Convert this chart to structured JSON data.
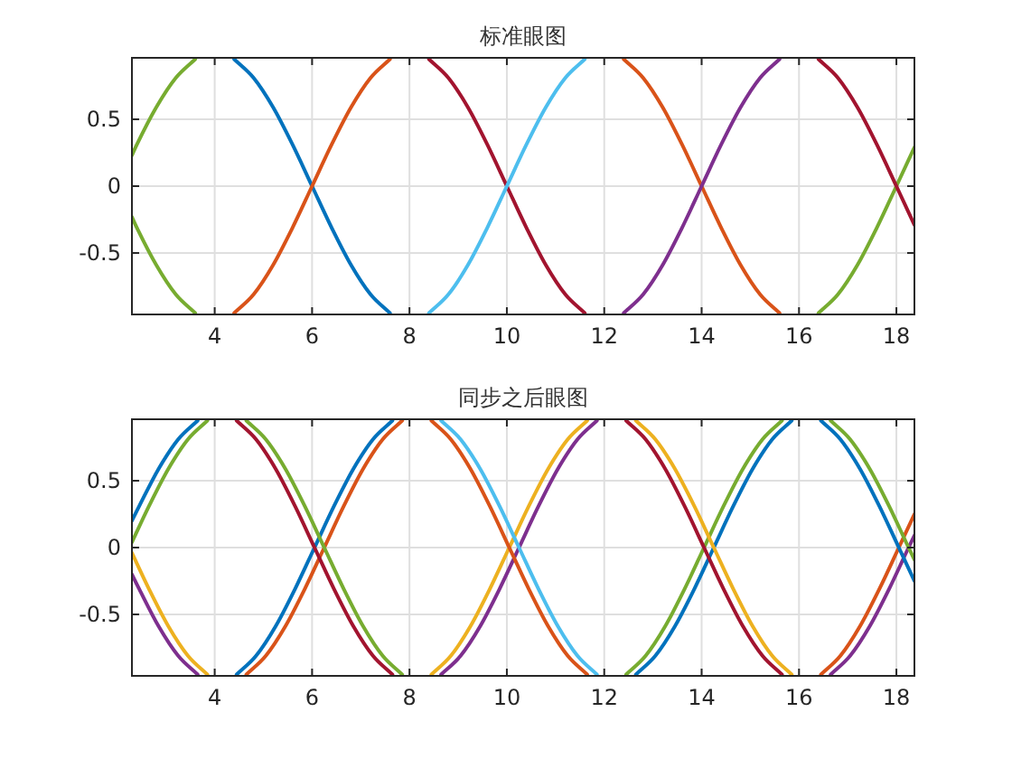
{
  "chart_data": [
    {
      "type": "line",
      "title": "标准眼图",
      "xlim": [
        2.3,
        18.37
      ],
      "ylim": [
        -0.96,
        0.96
      ],
      "xticks": [
        4,
        6,
        8,
        10,
        12,
        14,
        16,
        18
      ],
      "yticks": [
        -0.5,
        0,
        0.5
      ],
      "grid": true,
      "series": [
        {
          "color": "#77ac30",
          "x": [
            2.3,
            2.4,
            2.8,
            3.2,
            3.6
          ],
          "values": [
            0.23,
            0.31,
            0.59,
            0.81,
            0.95
          ]
        },
        {
          "color": "#77ac30",
          "x": [
            2.3,
            2.4,
            2.8,
            3.2,
            3.6
          ],
          "values": [
            -0.23,
            -0.31,
            -0.59,
            -0.81,
            -0.95
          ]
        },
        {
          "color": "#0072bd",
          "x": [
            4.4,
            4.8,
            5.2,
            5.6,
            6,
            6.4,
            6.8,
            7.2,
            7.6
          ],
          "values": [
            0.95,
            0.81,
            0.59,
            0.31,
            0,
            -0.31,
            -0.59,
            -0.81,
            -0.95
          ]
        },
        {
          "color": "#d95319",
          "x": [
            4.4,
            4.8,
            5.2,
            5.6,
            6,
            6.4,
            6.8,
            7.2,
            7.6
          ],
          "values": [
            -0.95,
            -0.81,
            -0.59,
            -0.31,
            0,
            0.31,
            0.59,
            0.81,
            0.95
          ]
        },
        {
          "color": "#a2142f",
          "x": [
            8.4,
            8.8,
            9.2,
            9.6,
            10,
            10.4,
            10.8,
            11.2,
            11.6
          ],
          "values": [
            0.95,
            0.81,
            0.59,
            0.31,
            0,
            -0.31,
            -0.59,
            -0.81,
            -0.95
          ]
        },
        {
          "color": "#4dbeee",
          "x": [
            8.4,
            8.8,
            9.2,
            9.6,
            10,
            10.4,
            10.8,
            11.2,
            11.6
          ],
          "values": [
            -0.95,
            -0.81,
            -0.59,
            -0.31,
            0,
            0.31,
            0.59,
            0.81,
            0.95
          ]
        },
        {
          "color": "#d95319",
          "x": [
            12.4,
            12.8,
            13.2,
            13.6,
            14,
            14.4,
            14.8,
            15.2,
            15.6
          ],
          "values": [
            0.95,
            0.81,
            0.59,
            0.31,
            0,
            -0.31,
            -0.59,
            -0.81,
            -0.95
          ]
        },
        {
          "color": "#7e2f8e",
          "x": [
            12.4,
            12.8,
            13.2,
            13.6,
            14,
            14.4,
            14.8,
            15.2,
            15.6
          ],
          "values": [
            -0.95,
            -0.81,
            -0.59,
            -0.31,
            0,
            0.31,
            0.59,
            0.81,
            0.95
          ]
        },
        {
          "color": "#77ac30",
          "x": [
            16.4,
            16.8,
            17.2,
            17.6,
            18,
            18.37
          ],
          "values": [
            -0.95,
            -0.81,
            -0.59,
            -0.31,
            0,
            0.29
          ]
        },
        {
          "color": "#a2142f",
          "x": [
            16.4,
            16.8,
            17.2,
            17.6,
            18,
            18.37
          ],
          "values": [
            0.95,
            0.81,
            0.59,
            0.31,
            0,
            -0.29
          ]
        }
      ]
    },
    {
      "type": "line",
      "title": "同步之后眼图",
      "xlim": [
        2.3,
        18.37
      ],
      "ylim": [
        -0.96,
        0.96
      ],
      "xticks": [
        4,
        6,
        8,
        10,
        12,
        14,
        16,
        18
      ],
      "yticks": [
        -0.5,
        0,
        0.5
      ],
      "grid": true,
      "series": [
        {
          "color": "#0072bd",
          "x": [
            2.3,
            2.45,
            2.85,
            3.25,
            3.65
          ],
          "values": [
            0.2,
            0.31,
            0.59,
            0.81,
            0.95
          ]
        },
        {
          "color": "#77ac30",
          "x": [
            2.3,
            2.65,
            3.05,
            3.45,
            3.85
          ],
          "values": [
            0.04,
            0.31,
            0.59,
            0.81,
            0.95
          ]
        },
        {
          "color": "#7e2f8e",
          "x": [
            2.3,
            2.45,
            2.85,
            3.25,
            3.65
          ],
          "values": [
            -0.2,
            -0.31,
            -0.59,
            -0.81,
            -0.95
          ]
        },
        {
          "color": "#edb120",
          "x": [
            2.3,
            2.65,
            3.05,
            3.45,
            3.85
          ],
          "values": [
            -0.04,
            -0.31,
            -0.59,
            -0.81,
            -0.95
          ]
        },
        {
          "color": "#0072bd",
          "x": [
            4.45,
            4.85,
            5.25,
            5.65,
            6.05,
            6.45,
            6.85,
            7.25,
            7.65
          ],
          "values": [
            -0.95,
            -0.81,
            -0.59,
            -0.31,
            0,
            0.31,
            0.59,
            0.81,
            0.95
          ]
        },
        {
          "color": "#d95319",
          "x": [
            4.65,
            5.05,
            5.45,
            5.85,
            6.25,
            6.65,
            7.05,
            7.45,
            7.85
          ],
          "values": [
            -0.95,
            -0.81,
            -0.59,
            -0.31,
            0,
            0.31,
            0.59,
            0.81,
            0.95
          ]
        },
        {
          "color": "#a2142f",
          "x": [
            4.45,
            4.85,
            5.25,
            5.65,
            6.05,
            6.45,
            6.85,
            7.25,
            7.65
          ],
          "values": [
            0.95,
            0.81,
            0.59,
            0.31,
            0,
            -0.31,
            -0.59,
            -0.81,
            -0.95
          ]
        },
        {
          "color": "#77ac30",
          "x": [
            4.65,
            5.05,
            5.45,
            5.85,
            6.25,
            6.65,
            7.05,
            7.45,
            7.85
          ],
          "values": [
            0.95,
            0.81,
            0.59,
            0.31,
            0,
            -0.31,
            -0.59,
            -0.81,
            -0.95
          ]
        },
        {
          "color": "#edb120",
          "x": [
            8.45,
            8.85,
            9.25,
            9.65,
            10.05,
            10.45,
            10.85,
            11.25,
            11.65
          ],
          "values": [
            -0.95,
            -0.81,
            -0.59,
            -0.31,
            0,
            0.31,
            0.59,
            0.81,
            0.95
          ]
        },
        {
          "color": "#7e2f8e",
          "x": [
            8.65,
            9.05,
            9.45,
            9.85,
            10.25,
            10.65,
            11.05,
            11.45,
            11.85
          ],
          "values": [
            -0.95,
            -0.81,
            -0.59,
            -0.31,
            0,
            0.31,
            0.59,
            0.81,
            0.95
          ]
        },
        {
          "color": "#d95319",
          "x": [
            8.45,
            8.85,
            9.25,
            9.65,
            10.05,
            10.45,
            10.85,
            11.25,
            11.65
          ],
          "values": [
            0.95,
            0.81,
            0.59,
            0.31,
            0,
            -0.31,
            -0.59,
            -0.81,
            -0.95
          ]
        },
        {
          "color": "#4dbeee",
          "x": [
            8.65,
            9.05,
            9.45,
            9.85,
            10.25,
            10.65,
            11.05,
            11.45,
            11.85
          ],
          "values": [
            0.95,
            0.81,
            0.59,
            0.31,
            0,
            -0.31,
            -0.59,
            -0.81,
            -0.95
          ]
        },
        {
          "color": "#77ac30",
          "x": [
            12.45,
            12.85,
            13.25,
            13.65,
            14.05,
            14.45,
            14.85,
            15.25,
            15.65
          ],
          "values": [
            -0.95,
            -0.81,
            -0.59,
            -0.31,
            0,
            0.31,
            0.59,
            0.81,
            0.95
          ]
        },
        {
          "color": "#0072bd",
          "x": [
            12.65,
            13.05,
            13.45,
            13.85,
            14.25,
            14.65,
            15.05,
            15.45,
            15.85
          ],
          "values": [
            -0.95,
            -0.81,
            -0.59,
            -0.31,
            0,
            0.31,
            0.59,
            0.81,
            0.95
          ]
        },
        {
          "color": "#a2142f",
          "x": [
            12.45,
            12.85,
            13.25,
            13.65,
            14.05,
            14.45,
            14.85,
            15.25,
            15.65
          ],
          "values": [
            0.95,
            0.81,
            0.59,
            0.31,
            0,
            -0.31,
            -0.59,
            -0.81,
            -0.95
          ]
        },
        {
          "color": "#edb120",
          "x": [
            12.65,
            13.05,
            13.45,
            13.85,
            14.25,
            14.65,
            15.05,
            15.45,
            15.85
          ],
          "values": [
            0.95,
            0.81,
            0.59,
            0.31,
            0,
            -0.31,
            -0.59,
            -0.81,
            -0.95
          ]
        },
        {
          "color": "#d95319",
          "x": [
            16.45,
            16.85,
            17.25,
            17.65,
            18.05,
            18.37
          ],
          "values": [
            -0.95,
            -0.81,
            -0.59,
            -0.31,
            0,
            0.25
          ]
        },
        {
          "color": "#7e2f8e",
          "x": [
            16.65,
            17.05,
            17.45,
            17.85,
            18.25,
            18.37
          ],
          "values": [
            -0.95,
            -0.81,
            -0.59,
            -0.31,
            0,
            0.09
          ]
        },
        {
          "color": "#0072bd",
          "x": [
            16.45,
            16.85,
            17.25,
            17.65,
            18.05,
            18.37
          ],
          "values": [
            0.95,
            0.81,
            0.59,
            0.31,
            0,
            -0.25
          ]
        },
        {
          "color": "#77ac30",
          "x": [
            16.65,
            17.05,
            17.45,
            17.85,
            18.25,
            18.37
          ],
          "values": [
            0.95,
            0.81,
            0.59,
            0.31,
            0,
            -0.09
          ]
        }
      ]
    }
  ]
}
